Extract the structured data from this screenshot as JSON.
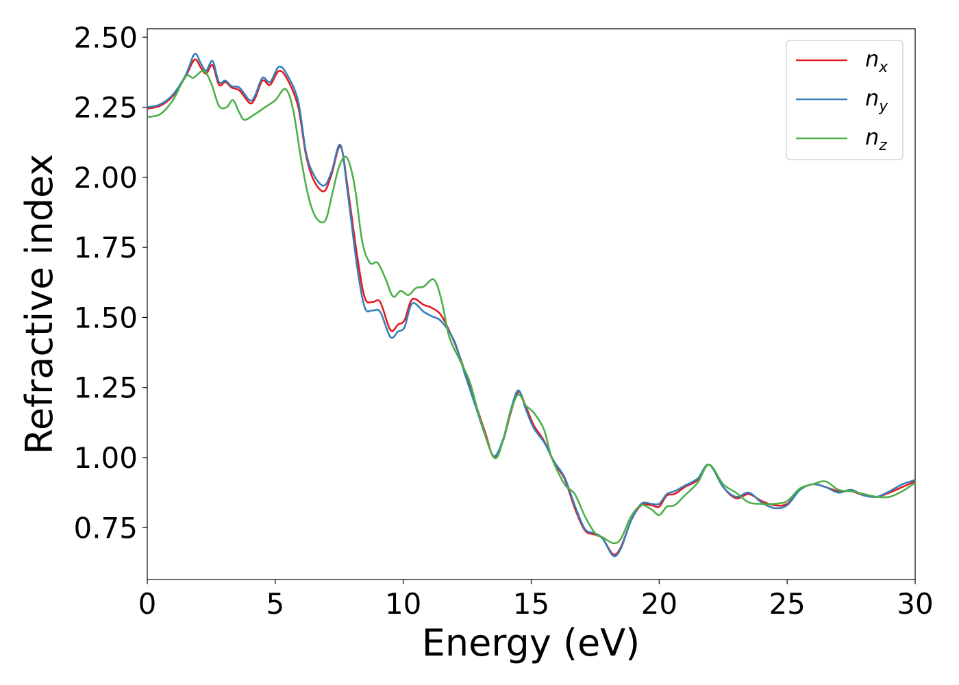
{
  "chart_data": {
    "type": "line",
    "title": "",
    "xlabel": "Energy (eV)",
    "ylabel": "Refractive index",
    "xlim": [
      0,
      30
    ],
    "ylim": [
      0.565,
      2.53
    ],
    "xticks": [
      "0",
      "5",
      "10",
      "15",
      "20",
      "25",
      "30"
    ],
    "xtick_values": [
      0,
      5,
      10,
      15,
      20,
      25,
      30
    ],
    "yticks": [
      "0.75",
      "1.00",
      "1.25",
      "1.50",
      "1.75",
      "2.00",
      "2.25",
      "2.50"
    ],
    "ytick_values": [
      0.75,
      1.0,
      1.25,
      1.5,
      1.75,
      2.0,
      2.25,
      2.5
    ],
    "grid": false,
    "legend_position": "top-right",
    "series": [
      {
        "name": "n",
        "subscript": "x",
        "color": "#e41a1c",
        "points": [
          [
            0,
            2.245
          ],
          [
            0.5,
            2.255
          ],
          [
            1,
            2.29
          ],
          [
            1.5,
            2.36
          ],
          [
            1.85,
            2.42
          ],
          [
            2.1,
            2.39
          ],
          [
            2.3,
            2.37
          ],
          [
            2.55,
            2.4
          ],
          [
            2.8,
            2.33
          ],
          [
            3.05,
            2.34
          ],
          [
            3.3,
            2.32
          ],
          [
            3.6,
            2.31
          ],
          [
            4.0,
            2.265
          ],
          [
            4.2,
            2.28
          ],
          [
            4.5,
            2.345
          ],
          [
            4.8,
            2.33
          ],
          [
            5.15,
            2.38
          ],
          [
            5.5,
            2.345
          ],
          [
            5.9,
            2.25
          ],
          [
            6.2,
            2.08
          ],
          [
            6.5,
            1.99
          ],
          [
            6.9,
            1.95
          ],
          [
            7.2,
            2.01
          ],
          [
            7.55,
            2.11
          ],
          [
            7.85,
            1.95
          ],
          [
            8.2,
            1.72
          ],
          [
            8.5,
            1.57
          ],
          [
            8.8,
            1.555
          ],
          [
            9.1,
            1.555
          ],
          [
            9.5,
            1.455
          ],
          [
            9.8,
            1.475
          ],
          [
            10.05,
            1.49
          ],
          [
            10.35,
            1.565
          ],
          [
            10.8,
            1.545
          ],
          [
            11.1,
            1.535
          ],
          [
            11.5,
            1.505
          ],
          [
            12.0,
            1.41
          ],
          [
            12.4,
            1.31
          ],
          [
            12.8,
            1.2
          ],
          [
            13.2,
            1.09
          ],
          [
            13.55,
            1.0
          ],
          [
            13.9,
            1.06
          ],
          [
            14.2,
            1.16
          ],
          [
            14.5,
            1.235
          ],
          [
            14.8,
            1.18
          ],
          [
            15.1,
            1.115
          ],
          [
            15.5,
            1.06
          ],
          [
            15.9,
            0.98
          ],
          [
            16.3,
            0.925
          ],
          [
            16.7,
            0.82
          ],
          [
            17.1,
            0.74
          ],
          [
            17.5,
            0.725
          ],
          [
            17.8,
            0.71
          ],
          [
            18.2,
            0.655
          ],
          [
            18.5,
            0.68
          ],
          [
            18.9,
            0.775
          ],
          [
            19.3,
            0.83
          ],
          [
            19.7,
            0.83
          ],
          [
            20.0,
            0.825
          ],
          [
            20.3,
            0.865
          ],
          [
            20.6,
            0.87
          ],
          [
            21.0,
            0.895
          ],
          [
            21.5,
            0.92
          ],
          [
            21.95,
            0.975
          ],
          [
            22.5,
            0.895
          ],
          [
            23.0,
            0.855
          ],
          [
            23.5,
            0.87
          ],
          [
            24.0,
            0.845
          ],
          [
            24.5,
            0.83
          ],
          [
            25.0,
            0.835
          ],
          [
            25.5,
            0.885
          ],
          [
            26.0,
            0.905
          ],
          [
            26.5,
            0.895
          ],
          [
            27.0,
            0.88
          ],
          [
            27.5,
            0.88
          ],
          [
            28.0,
            0.865
          ],
          [
            28.5,
            0.86
          ],
          [
            29.0,
            0.875
          ],
          [
            29.5,
            0.895
          ],
          [
            30.0,
            0.915
          ]
        ]
      },
      {
        "name": "n",
        "subscript": "y",
        "color": "#377eb8",
        "points": [
          [
            0,
            2.25
          ],
          [
            0.5,
            2.26
          ],
          [
            1,
            2.295
          ],
          [
            1.5,
            2.365
          ],
          [
            1.85,
            2.44
          ],
          [
            2.1,
            2.405
          ],
          [
            2.3,
            2.38
          ],
          [
            2.55,
            2.415
          ],
          [
            2.8,
            2.34
          ],
          [
            3.05,
            2.345
          ],
          [
            3.3,
            2.325
          ],
          [
            3.6,
            2.32
          ],
          [
            4.0,
            2.275
          ],
          [
            4.2,
            2.29
          ],
          [
            4.5,
            2.355
          ],
          [
            4.8,
            2.34
          ],
          [
            5.15,
            2.395
          ],
          [
            5.5,
            2.36
          ],
          [
            5.9,
            2.27
          ],
          [
            6.2,
            2.09
          ],
          [
            6.5,
            2.01
          ],
          [
            6.9,
            1.97
          ],
          [
            7.2,
            2.02
          ],
          [
            7.55,
            2.115
          ],
          [
            7.85,
            1.93
          ],
          [
            8.2,
            1.68
          ],
          [
            8.5,
            1.535
          ],
          [
            8.8,
            1.525
          ],
          [
            9.1,
            1.52
          ],
          [
            9.5,
            1.43
          ],
          [
            9.8,
            1.45
          ],
          [
            10.05,
            1.465
          ],
          [
            10.35,
            1.55
          ],
          [
            10.8,
            1.52
          ],
          [
            11.1,
            1.505
          ],
          [
            11.5,
            1.485
          ],
          [
            12.0,
            1.415
          ],
          [
            12.4,
            1.3
          ],
          [
            12.8,
            1.19
          ],
          [
            13.2,
            1.08
          ],
          [
            13.55,
            1.005
          ],
          [
            13.9,
            1.065
          ],
          [
            14.2,
            1.17
          ],
          [
            14.5,
            1.24
          ],
          [
            14.8,
            1.17
          ],
          [
            15.1,
            1.105
          ],
          [
            15.5,
            1.055
          ],
          [
            15.9,
            0.985
          ],
          [
            16.3,
            0.93
          ],
          [
            16.7,
            0.83
          ],
          [
            17.1,
            0.745
          ],
          [
            17.5,
            0.73
          ],
          [
            17.8,
            0.71
          ],
          [
            18.2,
            0.65
          ],
          [
            18.5,
            0.675
          ],
          [
            18.9,
            0.775
          ],
          [
            19.3,
            0.835
          ],
          [
            19.7,
            0.835
          ],
          [
            20.0,
            0.835
          ],
          [
            20.3,
            0.87
          ],
          [
            20.6,
            0.88
          ],
          [
            21.0,
            0.9
          ],
          [
            21.5,
            0.925
          ],
          [
            21.95,
            0.975
          ],
          [
            22.5,
            0.895
          ],
          [
            23.0,
            0.86
          ],
          [
            23.5,
            0.875
          ],
          [
            24.0,
            0.84
          ],
          [
            24.5,
            0.82
          ],
          [
            25.0,
            0.83
          ],
          [
            25.5,
            0.885
          ],
          [
            26.0,
            0.905
          ],
          [
            26.5,
            0.895
          ],
          [
            27.0,
            0.875
          ],
          [
            27.5,
            0.885
          ],
          [
            28.0,
            0.865
          ],
          [
            28.5,
            0.86
          ],
          [
            29.0,
            0.88
          ],
          [
            29.5,
            0.905
          ],
          [
            30.0,
            0.92
          ]
        ]
      },
      {
        "name": "n",
        "subscript": "z",
        "color": "#4daf4a",
        "points": [
          [
            0,
            2.215
          ],
          [
            0.5,
            2.225
          ],
          [
            1,
            2.275
          ],
          [
            1.5,
            2.36
          ],
          [
            1.8,
            2.355
          ],
          [
            2.2,
            2.38
          ],
          [
            2.5,
            2.335
          ],
          [
            2.8,
            2.255
          ],
          [
            3.1,
            2.25
          ],
          [
            3.35,
            2.275
          ],
          [
            3.6,
            2.23
          ],
          [
            3.8,
            2.205
          ],
          [
            4.2,
            2.225
          ],
          [
            4.6,
            2.25
          ],
          [
            5.0,
            2.275
          ],
          [
            5.4,
            2.315
          ],
          [
            5.7,
            2.24
          ],
          [
            6.0,
            2.07
          ],
          [
            6.3,
            1.93
          ],
          [
            6.6,
            1.855
          ],
          [
            6.95,
            1.845
          ],
          [
            7.2,
            1.93
          ],
          [
            7.5,
            2.04
          ],
          [
            7.8,
            2.07
          ],
          [
            8.1,
            1.97
          ],
          [
            8.4,
            1.77
          ],
          [
            8.7,
            1.695
          ],
          [
            9.0,
            1.695
          ],
          [
            9.3,
            1.64
          ],
          [
            9.6,
            1.575
          ],
          [
            9.9,
            1.595
          ],
          [
            10.2,
            1.58
          ],
          [
            10.5,
            1.605
          ],
          [
            10.8,
            1.61
          ],
          [
            11.2,
            1.635
          ],
          [
            11.5,
            1.56
          ],
          [
            11.8,
            1.43
          ],
          [
            12.2,
            1.35
          ],
          [
            12.6,
            1.27
          ],
          [
            13.0,
            1.14
          ],
          [
            13.55,
            1.0
          ],
          [
            13.9,
            1.06
          ],
          [
            14.2,
            1.165
          ],
          [
            14.5,
            1.225
          ],
          [
            14.8,
            1.185
          ],
          [
            15.1,
            1.16
          ],
          [
            15.5,
            1.1
          ],
          [
            15.8,
            1.0
          ],
          [
            16.3,
            0.905
          ],
          [
            16.7,
            0.87
          ],
          [
            17.1,
            0.79
          ],
          [
            17.5,
            0.73
          ],
          [
            17.8,
            0.715
          ],
          [
            18.2,
            0.695
          ],
          [
            18.5,
            0.71
          ],
          [
            18.9,
            0.79
          ],
          [
            19.3,
            0.83
          ],
          [
            19.7,
            0.815
          ],
          [
            20.0,
            0.795
          ],
          [
            20.3,
            0.825
          ],
          [
            20.6,
            0.83
          ],
          [
            21.0,
            0.865
          ],
          [
            21.5,
            0.91
          ],
          [
            21.95,
            0.975
          ],
          [
            22.5,
            0.905
          ],
          [
            23.0,
            0.875
          ],
          [
            23.5,
            0.84
          ],
          [
            24.0,
            0.835
          ],
          [
            24.5,
            0.835
          ],
          [
            25.0,
            0.845
          ],
          [
            25.5,
            0.89
          ],
          [
            26.0,
            0.905
          ],
          [
            26.5,
            0.915
          ],
          [
            27.0,
            0.885
          ],
          [
            27.5,
            0.88
          ],
          [
            28.0,
            0.87
          ],
          [
            28.5,
            0.86
          ],
          [
            29.0,
            0.86
          ],
          [
            29.5,
            0.88
          ],
          [
            30.0,
            0.91
          ]
        ]
      }
    ]
  }
}
